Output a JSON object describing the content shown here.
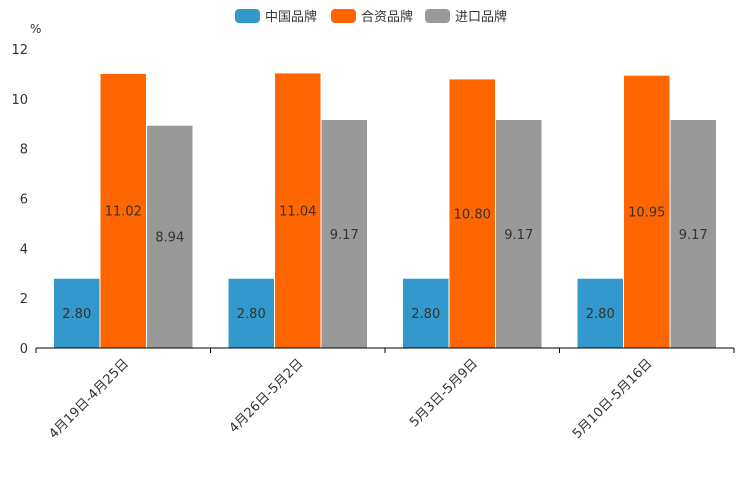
{
  "chart_data": {
    "type": "bar",
    "title": "",
    "xlabel": "",
    "ylabel": "%",
    "ylim": [
      0,
      12
    ],
    "yticks": [
      0,
      2,
      4,
      6,
      8,
      10,
      12
    ],
    "categories": [
      "4月19日-4月25日",
      "4月26日-5月2日",
      "5月3日-5月9日",
      "5月10日-5月16日"
    ],
    "series": [
      {
        "name": "中国品牌",
        "color": "#3399cc",
        "values": [
          2.8,
          2.8,
          2.8,
          2.8
        ],
        "labels": [
          "2.80",
          "2.80",
          "2.80",
          "2.80"
        ]
      },
      {
        "name": "合资品牌",
        "color": "#ff6600",
        "values": [
          11.02,
          11.04,
          10.8,
          10.95
        ],
        "labels": [
          "11.02",
          "11.04",
          "10.80",
          "10.95"
        ]
      },
      {
        "name": "进口品牌",
        "color": "#999999",
        "values": [
          8.94,
          9.17,
          9.17,
          9.17
        ],
        "labels": [
          "8.94",
          "9.17",
          "9.17",
          "9.17"
        ]
      }
    ],
    "legend_position": "top-center",
    "grid": false
  }
}
